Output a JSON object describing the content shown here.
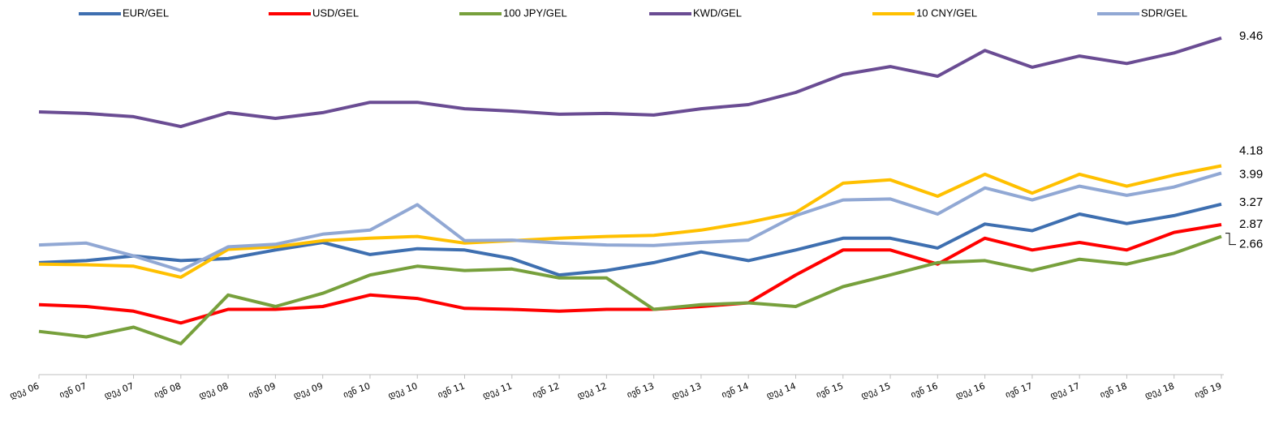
{
  "chart_data": {
    "type": "line",
    "categories": [
      "დეკ 06",
      "ივნ 07",
      "დეკ 07",
      "ივნ 08",
      "დეკ 08",
      "ივნ 09",
      "დეკ 09",
      "ივნ 10",
      "დეკ 10",
      "ივნ 11",
      "დეკ 11",
      "ივნ 12",
      "დეკ 12",
      "ივნ 13",
      "დეკ 13",
      "ივნ 14",
      "დეკ 14",
      "ივნ 15",
      "დეკ 15",
      "ივნ 16",
      "დეკ 16",
      "ივნ 17",
      "დეკ 17",
      "ივნ 18",
      "დეკ 18",
      "ივნ 19"
    ],
    "series": [
      {
        "name": "EUR/GEL",
        "color": "#3e6fb0",
        "values": [
          2.25,
          2.28,
          2.35,
          2.28,
          2.31,
          2.44,
          2.56,
          2.37,
          2.46,
          2.44,
          2.31,
          2.08,
          2.14,
          2.25,
          2.41,
          2.28,
          2.44,
          2.63,
          2.63,
          2.47,
          2.88,
          2.76,
          3.07,
          2.89,
          3.04,
          3.27
        ]
      },
      {
        "name": "USD/GEL",
        "color": "#ff0000",
        "values": [
          1.72,
          1.7,
          1.65,
          1.53,
          1.67,
          1.67,
          1.7,
          1.83,
          1.79,
          1.68,
          1.67,
          1.65,
          1.67,
          1.67,
          1.7,
          1.74,
          2.08,
          2.44,
          2.44,
          2.23,
          2.63,
          2.44,
          2.56,
          2.44,
          2.73,
          2.87
        ]
      },
      {
        "name": "100 JPY/GEL",
        "color": "#77a03c",
        "values": [
          1.45,
          1.4,
          1.49,
          1.34,
          1.83,
          1.7,
          1.85,
          2.08,
          2.2,
          2.14,
          2.16,
          2.04,
          2.04,
          1.67,
          1.72,
          1.74,
          1.7,
          1.93,
          2.08,
          2.25,
          2.28,
          2.14,
          2.3,
          2.23,
          2.39,
          2.66
        ]
      },
      {
        "name": "KWD/GEL",
        "color": "#6a4c93",
        "values": [
          5.9,
          5.84,
          5.72,
          5.37,
          5.87,
          5.66,
          5.87,
          6.27,
          6.27,
          6.02,
          5.93,
          5.81,
          5.84,
          5.78,
          6.02,
          6.18,
          6.68,
          7.49,
          7.88,
          7.41,
          8.74,
          7.85,
          8.43,
          8.04,
          8.6,
          9.46
        ]
      },
      {
        "name": "10 CNY/GEL",
        "color": "#ffc000",
        "values": [
          2.23,
          2.22,
          2.2,
          2.05,
          2.45,
          2.49,
          2.59,
          2.63,
          2.66,
          2.55,
          2.59,
          2.63,
          2.66,
          2.68,
          2.77,
          2.91,
          3.1,
          3.74,
          3.82,
          3.44,
          3.96,
          3.51,
          3.96,
          3.67,
          3.94,
          4.18
        ]
      },
      {
        "name": "SDR/GEL",
        "color": "#91a8d4",
        "values": [
          2.52,
          2.55,
          2.35,
          2.14,
          2.49,
          2.53,
          2.7,
          2.77,
          3.26,
          2.59,
          2.6,
          2.55,
          2.52,
          2.51,
          2.56,
          2.6,
          3.04,
          3.36,
          3.38,
          3.07,
          3.63,
          3.36,
          3.67,
          3.46,
          3.65,
          3.99
        ]
      }
    ],
    "ylim": [
      1.1,
      12
    ],
    "log_scale": true,
    "legend": "top"
  }
}
